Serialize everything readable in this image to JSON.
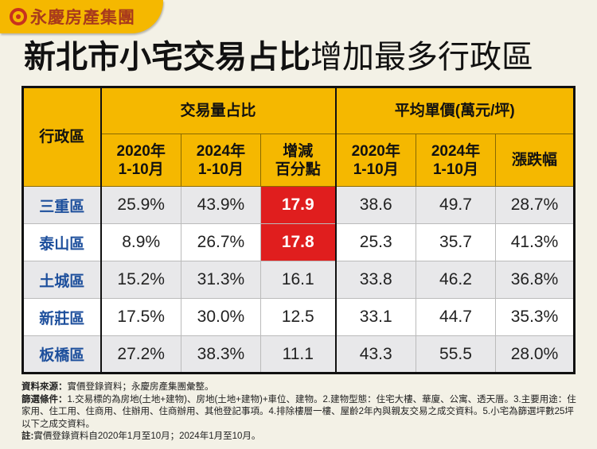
{
  "brand": {
    "name": "永慶房產集團"
  },
  "title": {
    "bold": "新北市小宅交易占比",
    "regular": "增加最多行政區"
  },
  "chart_data": {
    "type": "table",
    "header": {
      "district": "行政區",
      "group1": "交易量占比",
      "group2": "平均單價(萬元/坪)",
      "cols": [
        "2020年\n1-10月",
        "2024年\n1-10月",
        "增減\n百分點",
        "2020年\n1-10月",
        "2024年\n1-10月",
        "漲跌幅"
      ]
    },
    "rows": [
      {
        "district": "三重區",
        "values": [
          "25.9%",
          "43.9%",
          "17.9",
          "38.6",
          "49.7",
          "28.7%"
        ],
        "highlight": true
      },
      {
        "district": "泰山區",
        "values": [
          "8.9%",
          "26.7%",
          "17.8",
          "25.3",
          "35.7",
          "41.3%"
        ],
        "highlight": true
      },
      {
        "district": "土城區",
        "values": [
          "15.2%",
          "31.3%",
          "16.1",
          "33.8",
          "46.2",
          "36.8%"
        ],
        "highlight": false
      },
      {
        "district": "新莊區",
        "values": [
          "17.5%",
          "30.0%",
          "12.5",
          "33.1",
          "44.7",
          "35.3%"
        ],
        "highlight": false
      },
      {
        "district": "板橋區",
        "values": [
          "27.2%",
          "38.3%",
          "11.1",
          "43.3",
          "55.5",
          "28.0%"
        ],
        "highlight": false
      }
    ],
    "highlight_color": "#e01e1e",
    "header_color": "#f5b800"
  },
  "notes": {
    "source_label": "資料來源：",
    "source": "實價登錄資料；永慶房產集團彙整。",
    "filter_label": "篩選條件：",
    "filter": "1.交易標的為房地(土地+建物)、房地(土地+建物)+車位、建物。2.建物型態：住宅大樓、華廈、公寓、透天厝。3.主要用途：住家用、住工用、住商用、住辦用、住商辦用、其他登記事項。4.排除樓層一樓、屋齡2年內與親友交易之成交資料。5.小宅為篩選坪數25坪以下之成交資料。",
    "note_label": "註:",
    "note": "實價登錄資料自2020年1月至10月；2024年1月至10月。"
  }
}
